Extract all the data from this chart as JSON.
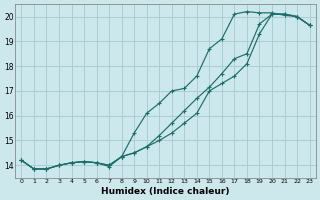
{
  "bg_color": "#cde8ec",
  "grid_color": "#aacdd4",
  "line_color": "#1a6e6a",
  "xlabel": "Humidex (Indice chaleur)",
  "xlim": [
    -0.5,
    23.5
  ],
  "ylim": [
    13.5,
    20.5
  ],
  "yticks": [
    14,
    15,
    16,
    17,
    18,
    19,
    20
  ],
  "xticks": [
    0,
    1,
    2,
    3,
    4,
    5,
    6,
    7,
    8,
    9,
    10,
    11,
    12,
    13,
    14,
    15,
    16,
    17,
    18,
    19,
    20,
    21,
    22,
    23
  ],
  "line1_x": [
    0,
    1,
    2,
    3,
    4,
    5,
    6,
    7,
    8,
    9,
    10,
    11,
    12,
    13,
    14,
    15,
    16,
    17,
    18,
    19,
    20,
    21,
    22,
    23
  ],
  "line1_y": [
    14.2,
    13.85,
    13.85,
    14.0,
    14.1,
    14.15,
    14.1,
    14.0,
    14.35,
    15.3,
    16.1,
    16.5,
    17.0,
    17.1,
    17.6,
    18.7,
    19.1,
    20.1,
    20.2,
    20.15,
    20.15,
    20.05,
    20.0,
    19.65
  ],
  "line2_x": [
    0,
    1,
    2,
    3,
    4,
    5,
    6,
    7,
    8,
    9,
    10,
    11,
    12,
    13,
    14,
    15,
    16,
    17,
    18,
    19,
    20,
    21,
    22,
    23
  ],
  "line2_y": [
    14.2,
    13.85,
    13.85,
    14.0,
    14.1,
    14.15,
    14.1,
    14.0,
    14.35,
    14.5,
    14.75,
    15.2,
    15.7,
    16.2,
    16.7,
    17.15,
    17.7,
    18.3,
    18.5,
    19.7,
    20.1,
    20.1,
    20.0,
    19.65
  ],
  "line3_x": [
    0,
    1,
    2,
    3,
    4,
    5,
    6,
    7,
    8,
    9,
    10,
    11,
    12,
    13,
    14,
    15,
    16,
    17,
    18,
    19,
    20,
    21,
    22,
    23
  ],
  "line3_y": [
    14.2,
    13.85,
    13.85,
    14.0,
    14.1,
    14.15,
    14.1,
    13.95,
    14.35,
    14.5,
    14.75,
    15.0,
    15.3,
    15.7,
    16.1,
    17.0,
    17.3,
    17.6,
    18.1,
    19.3,
    20.1,
    20.1,
    20.0,
    19.65
  ]
}
